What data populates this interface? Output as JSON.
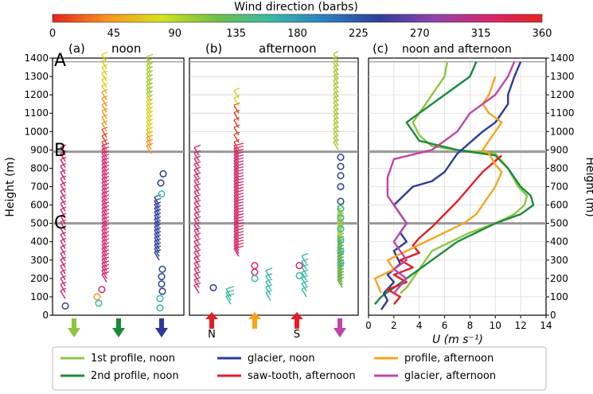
{
  "colorbar": {
    "title": "Wind direction (barbs)",
    "ticks": [
      "0",
      "45",
      "90",
      "135",
      "180",
      "225",
      "270",
      "315",
      "360"
    ],
    "stops": [
      "#e8231f",
      "#f7941d",
      "#d7e31b",
      "#6fc044",
      "#39b9a6",
      "#2b7fc2",
      "#2d3e99",
      "#8e44ad",
      "#d4266e",
      "#e8231f"
    ]
  },
  "panels": [
    {
      "label": "(a)",
      "title": "noon"
    },
    {
      "label": "(b)",
      "title": "afternoon"
    },
    {
      "label": "(c)",
      "title": "noon and afternoon"
    }
  ],
  "levels": [
    {
      "label": "A",
      "height": 1380
    },
    {
      "label": "B",
      "height": 890
    },
    {
      "label": "C",
      "height": 500
    }
  ],
  "axes": {
    "ylabel_left": "Height (m)",
    "ylabel_right": "Height (m)",
    "yticks": [
      "0",
      "100",
      "200",
      "300",
      "400",
      "500",
      "600",
      "700",
      "800",
      "900",
      "1000",
      "1100",
      "1200",
      "1300",
      "1400"
    ],
    "ylim": [
      0,
      1400
    ],
    "xlabel_c": "U (m s⁻¹)",
    "xticks_c": [
      "0",
      "2",
      "4",
      "6",
      "8",
      "10",
      "12",
      "14"
    ],
    "xlim_c": [
      0,
      14
    ]
  },
  "markers_b": [
    "N",
    "S"
  ],
  "legend": [
    {
      "label": "1st profile, noon",
      "color": "#8cc63f"
    },
    {
      "label": "glacier, noon",
      "color": "#2e3a9b"
    },
    {
      "label": "profile, afternoon",
      "color": "#f7a41d"
    },
    {
      "label": "2nd profile, noon",
      "color": "#1a8a3a"
    },
    {
      "label": "saw-tooth, afternoon",
      "color": "#e31e24"
    },
    {
      "label": "glacier, afternoon",
      "color": "#c044a8"
    }
  ],
  "chart_data": {
    "type": "line",
    "xlabel": "U (m s⁻¹)",
    "ylabel": "Height (m)",
    "xlim": [
      0,
      14
    ],
    "ylim": [
      0,
      1400
    ],
    "grid": true,
    "legend_position": "bottom",
    "series": [
      {
        "name": "1st profile, noon",
        "color": "#8cc63f",
        "x": [
          2.5,
          3,
          3.5,
          4,
          4.5,
          5,
          6.5,
          8,
          10,
          11.5,
          12.3,
          12.5,
          11.8,
          11,
          10,
          7,
          5,
          4,
          3.5,
          4,
          4.5,
          5,
          5.5,
          6,
          6.2
        ],
        "y": [
          120,
          150,
          200,
          250,
          300,
          350,
          400,
          450,
          500,
          550,
          600,
          650,
          700,
          800,
          880,
          900,
          920,
          980,
          1050,
          1100,
          1150,
          1200,
          1250,
          1300,
          1380
        ]
      },
      {
        "name": "2nd profile, noon",
        "color": "#1a8a3a",
        "x": [
          0.5,
          1,
          2,
          3,
          4,
          5,
          6,
          7,
          8.5,
          10,
          12,
          13,
          12.8,
          12,
          11,
          10,
          7,
          4,
          3,
          4,
          5,
          6,
          7,
          8,
          8.5
        ],
        "y": [
          60,
          100,
          150,
          200,
          250,
          300,
          350,
          400,
          450,
          500,
          550,
          600,
          650,
          700,
          800,
          870,
          900,
          950,
          1050,
          1100,
          1150,
          1200,
          1250,
          1300,
          1380
        ]
      },
      {
        "name": "glacier, noon",
        "color": "#2e3a9b",
        "x": [
          1,
          1.5,
          1.2,
          2,
          1.5,
          2.5,
          2,
          3,
          2.5,
          3,
          2.5,
          2,
          3.5,
          5,
          6,
          7,
          9,
          10,
          10.5,
          11,
          11,
          11.5,
          12
        ],
        "y": [
          30,
          80,
          120,
          180,
          220,
          280,
          350,
          400,
          450,
          500,
          550,
          600,
          700,
          730,
          780,
          880,
          1000,
          1050,
          1100,
          1150,
          1200,
          1300,
          1380
        ]
      },
      {
        "name": "saw-tooth, afternoon",
        "color": "#e31e24",
        "x": [
          2,
          2.5,
          1.5,
          3,
          2,
          3.5,
          2.5,
          4,
          3.5,
          4,
          5,
          6,
          7,
          8,
          9,
          10,
          10.5
        ],
        "y": [
          60,
          100,
          140,
          180,
          220,
          260,
          300,
          340,
          380,
          420,
          480,
          550,
          620,
          700,
          780,
          840,
          870
        ]
      },
      {
        "name": "profile, afternoon",
        "color": "#f7a41d",
        "x": [
          1,
          0.5,
          2,
          1.5,
          3,
          4.5,
          6,
          7.5,
          8.5,
          9,
          9.5,
          10,
          10.5,
          10,
          9.5,
          9,
          9.5,
          10,
          10.5,
          9.5,
          9,
          9.5,
          10
        ],
        "y": [
          120,
          200,
          250,
          300,
          350,
          400,
          450,
          500,
          550,
          600,
          650,
          700,
          780,
          820,
          880,
          900,
          950,
          1000,
          1050,
          1100,
          1150,
          1200,
          1300
        ]
      },
      {
        "name": "glacier, afternoon",
        "color": "#c044a8",
        "x": [
          2,
          2.5,
          3,
          2,
          3,
          2.5,
          2,
          2.5,
          3,
          2.5,
          2,
          1.5,
          1.5,
          2,
          5,
          7,
          8,
          9,
          10,
          11,
          11.5
        ],
        "y": [
          120,
          160,
          200,
          250,
          300,
          350,
          400,
          450,
          500,
          550,
          600,
          650,
          750,
          850,
          900,
          1000,
          1100,
          1150,
          1200,
          1300,
          1380
        ]
      }
    ]
  }
}
